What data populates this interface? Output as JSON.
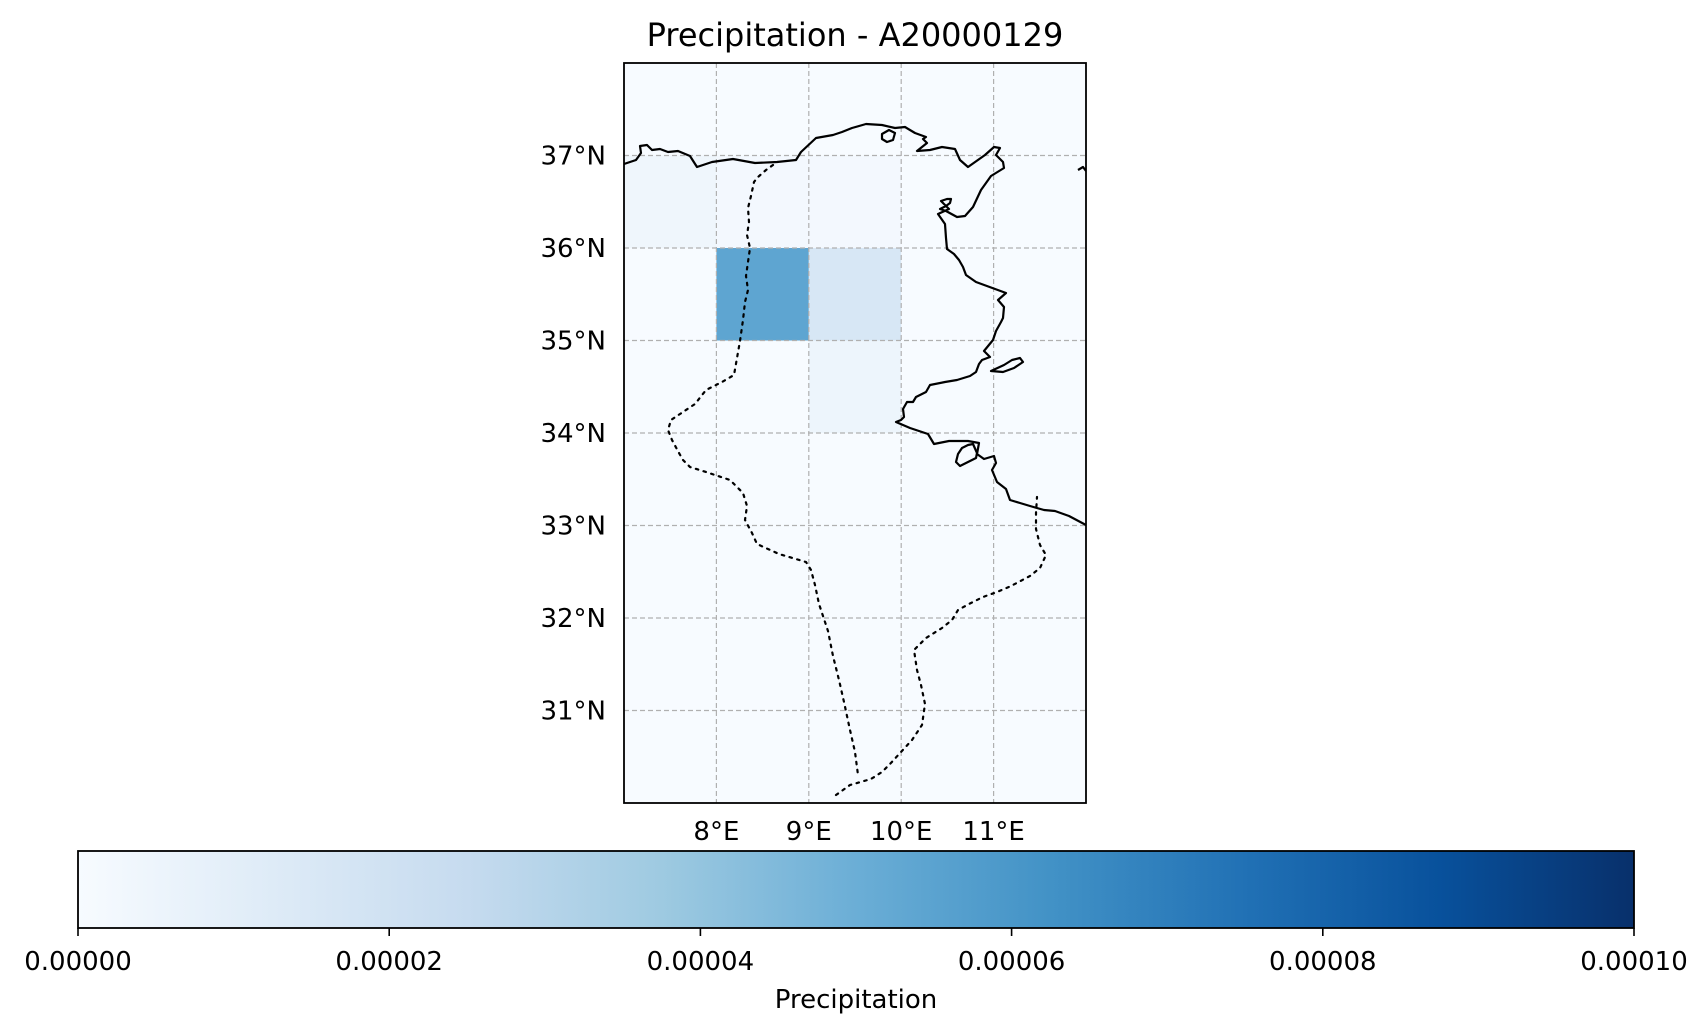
{
  "chart_data": {
    "type": "heatmap",
    "title": "Precipitation - A20000129",
    "lon_ticks": [
      "8°E",
      "9°E",
      "10°E",
      "11°E"
    ],
    "lat_ticks": [
      "37°N",
      "36°N",
      "35°N",
      "34°N",
      "33°N",
      "32°N",
      "31°N"
    ],
    "extent": {
      "lon_min": 7.0,
      "lon_max": 12.0,
      "lat_min": 30.0,
      "lat_max": 38.0
    },
    "grid": true,
    "cells": [
      {
        "lon0": 7,
        "lon1": 8,
        "lat0": 36,
        "lat1": 37,
        "value": 4e-06
      },
      {
        "lon0": 8,
        "lon1": 9,
        "lat0": 36,
        "lat1": 37,
        "value": 2e-06
      },
      {
        "lon0": 9,
        "lon1": 10,
        "lat0": 36,
        "lat1": 37,
        "value": 2e-06
      },
      {
        "lon0": 8,
        "lon1": 9,
        "lat0": 35,
        "lat1": 36,
        "value": 5.4e-05
      },
      {
        "lon0": 9,
        "lon1": 10,
        "lat0": 35,
        "lat1": 36,
        "value": 1.6e-05
      },
      {
        "lon0": 9,
        "lon1": 10,
        "lat0": 34,
        "lat1": 35,
        "value": 5e-06
      }
    ],
    "colorbar": {
      "label": "Precipitation",
      "min": 0.0,
      "max": 0.0001,
      "ticks": [
        "0.00000",
        "0.00002",
        "0.00004",
        "0.00006",
        "0.00008",
        "0.00010"
      ],
      "colormap": [
        "#f7fbff",
        "#deebf7",
        "#c6dbef",
        "#9ecae1",
        "#6baed6",
        "#4292c6",
        "#2171b5",
        "#08519c",
        "#08306b"
      ],
      "orientation": "horizontal"
    }
  }
}
